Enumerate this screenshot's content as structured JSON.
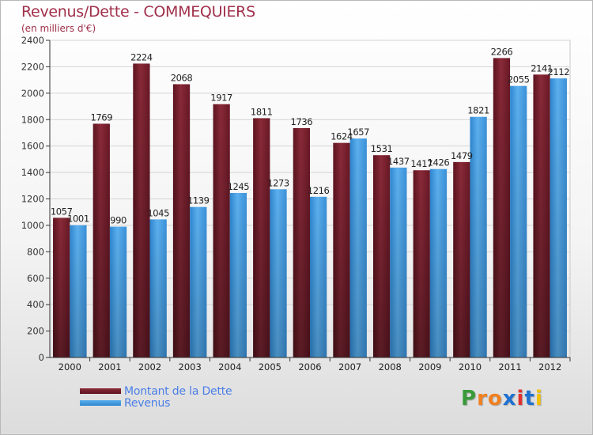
{
  "title": "Revenus/Dette - COMMEQUIERS",
  "subtitle": "(en milliers d'€)",
  "logo": {
    "letters": [
      "P",
      "r",
      "o",
      "x",
      "i",
      "t",
      "i"
    ],
    "colors": [
      "#3a9a3a",
      "#f08020",
      "#f08020",
      "#2070d0",
      "#e03030",
      "#2070d0",
      "#f0c000"
    ]
  },
  "chart_data": {
    "type": "bar",
    "categories": [
      "2000",
      "2001",
      "2002",
      "2003",
      "2004",
      "2005",
      "2006",
      "2007",
      "2008",
      "2009",
      "2010",
      "2011",
      "2012"
    ],
    "series": [
      {
        "name": "Montant de la Dette",
        "color": "#7a2030",
        "values": [
          1057,
          1769,
          2224,
          2068,
          1917,
          1811,
          1736,
          1624,
          1531,
          1417,
          1479,
          2266,
          2141
        ]
      },
      {
        "name": "Revenus",
        "color": "#4aa0e6",
        "values": [
          1001,
          990,
          1045,
          1139,
          1245,
          1273,
          1216,
          1657,
          1437,
          1426,
          1821,
          2055,
          2112
        ]
      }
    ],
    "ylim": [
      0,
      2400
    ],
    "yticks": [
      0,
      200,
      400,
      600,
      800,
      1000,
      1200,
      1400,
      1600,
      1800,
      2000,
      2200,
      2400
    ],
    "grid": true,
    "legend": "bottom-left"
  }
}
